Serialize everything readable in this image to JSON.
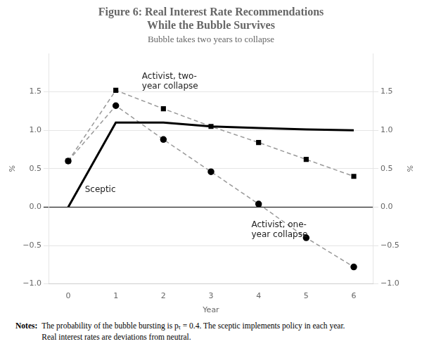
{
  "chart_data": {
    "type": "line",
    "title": "Figure 6: Real Interest Rate Recommendations\nWhile the Bubble Survives",
    "subtitle": "Bubble takes two years to collapse",
    "x_label": "Year",
    "y_label": "%",
    "y2_label": "%",
    "xlim": [
      -0.4,
      6.4
    ],
    "xticks": [
      0,
      1,
      2,
      3,
      4,
      5,
      6
    ],
    "ylim": [
      -1.0,
      2.0
    ],
    "yticks": [
      {
        "value": -1.0,
        "label": "−1.0"
      },
      {
        "value": -0.5,
        "label": "−0.5"
      },
      {
        "value": 0.0,
        "label": "0.0"
      },
      {
        "value": 0.5,
        "label": "0.5"
      },
      {
        "value": 1.0,
        "label": "1.0"
      },
      {
        "value": 1.5,
        "label": "1.5"
      }
    ],
    "y2lim": [
      -1.0,
      2.0
    ],
    "y2ticks": [
      {
        "value": -1.0,
        "label": "−1.0"
      },
      {
        "value": -0.5,
        "label": "−0.5"
      },
      {
        "value": 0.0,
        "label": "0.0"
      },
      {
        "value": 0.5,
        "label": "0.5"
      },
      {
        "value": 1.0,
        "label": "1.0"
      },
      {
        "value": 1.5,
        "label": "1.5"
      }
    ],
    "grid": true,
    "series": [
      {
        "color": "#000000",
        "marker": "none",
        "line_style": "solid",
        "x": [
          0,
          1,
          2,
          3,
          4,
          5,
          6
        ],
        "values": [
          0.0,
          1.1,
          1.1,
          1.05,
          1.03,
          1.01,
          1.0
        ]
      },
      {
        "color": "#999999",
        "marker": "square",
        "line_style": "dashed",
        "x": [
          0,
          1,
          2,
          3,
          4,
          5,
          6
        ],
        "values": [
          0.6,
          1.52,
          1.28,
          1.05,
          0.84,
          0.62,
          0.4
        ]
      },
      {
        "color": "#999999",
        "marker": "circle",
        "line_style": "dashed",
        "x": [
          0,
          1,
          2,
          3,
          4,
          5,
          6
        ],
        "values": [
          0.6,
          1.32,
          0.88,
          0.46,
          0.04,
          -0.4,
          -0.78
        ]
      }
    ],
    "annotations": [
      {
        "text": "Activist, two-\nyear collapse",
        "x": 1.55,
        "y": 1.75
      },
      {
        "text": "Sceptic",
        "x": 0.35,
        "y": 0.28
      },
      {
        "text": "Activist, one-\nyear collapse",
        "x": 3.85,
        "y": -0.18
      }
    ],
    "notes": [
      "Notes:",
      "The probability of the bubble bursting is pₜ = 0.4. The sceptic implements policy in each year.",
      "Real interest rates are deviations from neutral."
    ]
  }
}
